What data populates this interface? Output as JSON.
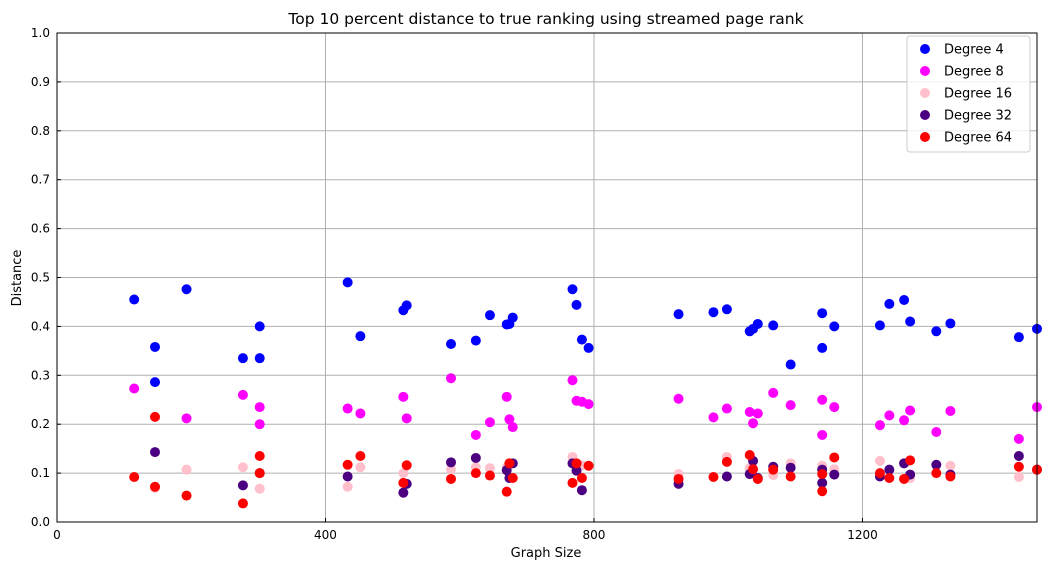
{
  "chart_data": {
    "type": "scatter",
    "title": "Top 10 percent distance to true ranking using streamed page rank",
    "xlabel": "Graph Size",
    "ylabel": "Distance",
    "xlim": [
      0,
      1460
    ],
    "ylim": [
      0,
      1.0
    ],
    "xticks": [
      "0",
      "400",
      "800",
      "1200"
    ],
    "xtick_values": [
      0,
      400,
      800,
      1200
    ],
    "yticks": [
      "0.0",
      "0.1",
      "0.2",
      "0.3",
      "0.4",
      "0.5",
      "0.6",
      "0.7",
      "0.8",
      "0.9",
      "1.0"
    ],
    "ytick_values": [
      0,
      0.1,
      0.2,
      0.3,
      0.4,
      0.5,
      0.6,
      0.7,
      0.8,
      0.9,
      1.0
    ],
    "grid": true,
    "legend_position": "top-right",
    "series": [
      {
        "name": "Degree 4",
        "color": "#0000ff",
        "points": [
          [
            115,
            0.455
          ],
          [
            146,
            0.358
          ],
          [
            146,
            0.286
          ],
          [
            193,
            0.476
          ],
          [
            277,
            0.335
          ],
          [
            302,
            0.4
          ],
          [
            302,
            0.335
          ],
          [
            433,
            0.49
          ],
          [
            452,
            0.38
          ],
          [
            516,
            0.433
          ],
          [
            521,
            0.443
          ],
          [
            587,
            0.364
          ],
          [
            624,
            0.371
          ],
          [
            645,
            0.423
          ],
          [
            670,
            0.404
          ],
          [
            674,
            0.405
          ],
          [
            679,
            0.418
          ],
          [
            768,
            0.476
          ],
          [
            774,
            0.444
          ],
          [
            782,
            0.373
          ],
          [
            792,
            0.356
          ],
          [
            926,
            0.425
          ],
          [
            978,
            0.429
          ],
          [
            998,
            0.435
          ],
          [
            1032,
            0.39
          ],
          [
            1037,
            0.395
          ],
          [
            1044,
            0.405
          ],
          [
            1067,
            0.402
          ],
          [
            1093,
            0.322
          ],
          [
            1140,
            0.427
          ],
          [
            1140,
            0.356
          ],
          [
            1158,
            0.4
          ],
          [
            1226,
            0.402
          ],
          [
            1240,
            0.446
          ],
          [
            1262,
            0.454
          ],
          [
            1271,
            0.41
          ],
          [
            1310,
            0.39
          ],
          [
            1331,
            0.406
          ],
          [
            1433,
            0.378
          ],
          [
            1460,
            0.395
          ]
        ]
      },
      {
        "name": "Degree 8",
        "color": "#ff00ff",
        "points": [
          [
            115,
            0.273
          ],
          [
            193,
            0.212
          ],
          [
            277,
            0.26
          ],
          [
            302,
            0.235
          ],
          [
            302,
            0.2
          ],
          [
            433,
            0.232
          ],
          [
            452,
            0.222
          ],
          [
            516,
            0.256
          ],
          [
            521,
            0.212
          ],
          [
            587,
            0.294
          ],
          [
            624,
            0.178
          ],
          [
            645,
            0.204
          ],
          [
            670,
            0.256
          ],
          [
            674,
            0.21
          ],
          [
            679,
            0.194
          ],
          [
            768,
            0.29
          ],
          [
            774,
            0.248
          ],
          [
            782,
            0.246
          ],
          [
            792,
            0.241
          ],
          [
            926,
            0.252
          ],
          [
            978,
            0.214
          ],
          [
            998,
            0.232
          ],
          [
            1032,
            0.225
          ],
          [
            1037,
            0.202
          ],
          [
            1044,
            0.222
          ],
          [
            1067,
            0.264
          ],
          [
            1093,
            0.239
          ],
          [
            1140,
            0.25
          ],
          [
            1140,
            0.178
          ],
          [
            1158,
            0.235
          ],
          [
            1226,
            0.198
          ],
          [
            1240,
            0.218
          ],
          [
            1262,
            0.208
          ],
          [
            1271,
            0.228
          ],
          [
            1310,
            0.184
          ],
          [
            1331,
            0.227
          ],
          [
            1433,
            0.17
          ],
          [
            1460,
            0.235
          ]
        ]
      },
      {
        "name": "Degree 16",
        "color": "#ffc0cb",
        "points": [
          [
            146,
            0.07
          ],
          [
            193,
            0.107
          ],
          [
            277,
            0.112
          ],
          [
            302,
            0.068
          ],
          [
            433,
            0.072
          ],
          [
            452,
            0.112
          ],
          [
            516,
            0.1
          ],
          [
            587,
            0.108
          ],
          [
            624,
            0.112
          ],
          [
            645,
            0.11
          ],
          [
            670,
            0.112
          ],
          [
            768,
            0.133
          ],
          [
            774,
            0.11
          ],
          [
            782,
            0.116
          ],
          [
            926,
            0.098
          ],
          [
            998,
            0.133
          ],
          [
            1032,
            0.11
          ],
          [
            1067,
            0.096
          ],
          [
            1093,
            0.12
          ],
          [
            1140,
            0.115
          ],
          [
            1158,
            0.108
          ],
          [
            1226,
            0.125
          ],
          [
            1271,
            0.09
          ],
          [
            1331,
            0.115
          ],
          [
            1433,
            0.092
          ]
        ]
      },
      {
        "name": "Degree 32",
        "color": "#4b0082",
        "points": [
          [
            146,
            0.143
          ],
          [
            277,
            0.075
          ],
          [
            302,
            0.1
          ],
          [
            433,
            0.093
          ],
          [
            516,
            0.06
          ],
          [
            521,
            0.078
          ],
          [
            587,
            0.122
          ],
          [
            624,
            0.131
          ],
          [
            670,
            0.106
          ],
          [
            674,
            0.09
          ],
          [
            679,
            0.12
          ],
          [
            768,
            0.12
          ],
          [
            774,
            0.105
          ],
          [
            782,
            0.065
          ],
          [
            926,
            0.078
          ],
          [
            998,
            0.093
          ],
          [
            1032,
            0.098
          ],
          [
            1037,
            0.125
          ],
          [
            1044,
            0.09
          ],
          [
            1067,
            0.113
          ],
          [
            1093,
            0.111
          ],
          [
            1140,
            0.08
          ],
          [
            1140,
            0.107
          ],
          [
            1158,
            0.097
          ],
          [
            1226,
            0.093
          ],
          [
            1240,
            0.107
          ],
          [
            1262,
            0.12
          ],
          [
            1271,
            0.097
          ],
          [
            1310,
            0.117
          ],
          [
            1331,
            0.097
          ],
          [
            1433,
            0.135
          ],
          [
            1460,
            0.107
          ]
        ]
      },
      {
        "name": "Degree 64",
        "color": "#ff0000",
        "points": [
          [
            115,
            0.092
          ],
          [
            146,
            0.072
          ],
          [
            146,
            0.215
          ],
          [
            193,
            0.054
          ],
          [
            277,
            0.038
          ],
          [
            302,
            0.135
          ],
          [
            302,
            0.1
          ],
          [
            433,
            0.117
          ],
          [
            452,
            0.135
          ],
          [
            516,
            0.08
          ],
          [
            521,
            0.116
          ],
          [
            587,
            0.088
          ],
          [
            624,
            0.1
          ],
          [
            645,
            0.095
          ],
          [
            670,
            0.062
          ],
          [
            674,
            0.12
          ],
          [
            679,
            0.09
          ],
          [
            768,
            0.08
          ],
          [
            774,
            0.12
          ],
          [
            782,
            0.09
          ],
          [
            792,
            0.115
          ],
          [
            926,
            0.088
          ],
          [
            978,
            0.092
          ],
          [
            998,
            0.123
          ],
          [
            1032,
            0.137
          ],
          [
            1037,
            0.108
          ],
          [
            1044,
            0.088
          ],
          [
            1067,
            0.107
          ],
          [
            1093,
            0.093
          ],
          [
            1140,
            0.063
          ],
          [
            1140,
            0.098
          ],
          [
            1158,
            0.132
          ],
          [
            1226,
            0.1
          ],
          [
            1240,
            0.09
          ],
          [
            1262,
            0.088
          ],
          [
            1271,
            0.126
          ],
          [
            1310,
            0.1
          ],
          [
            1331,
            0.093
          ],
          [
            1433,
            0.113
          ],
          [
            1460,
            0.107
          ]
        ]
      }
    ]
  }
}
